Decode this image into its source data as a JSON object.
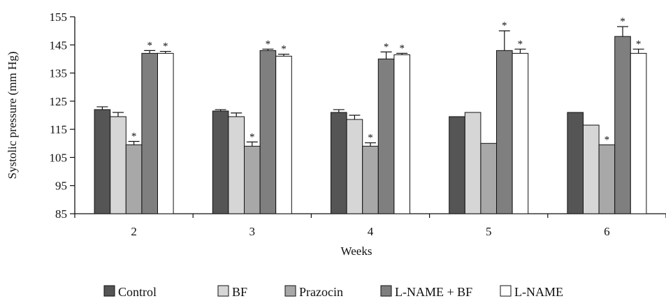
{
  "chart_data": {
    "type": "bar",
    "title": "",
    "xlabel": "Weeks",
    "ylabel": "Systolic pressure (mm Hg)",
    "ylim": [
      85,
      155
    ],
    "yticks": [
      85,
      95,
      105,
      115,
      125,
      135,
      145,
      155
    ],
    "categories": [
      "2",
      "3",
      "4",
      "5",
      "6"
    ],
    "series": [
      {
        "name": "Control",
        "color": "#555555",
        "values": [
          122,
          121.5,
          121,
          119.5,
          121
        ],
        "errors": [
          1,
          0.5,
          1,
          0,
          0
        ],
        "significant": [
          false,
          false,
          false,
          false,
          false
        ]
      },
      {
        "name": "BF",
        "color": "#d6d6d6",
        "values": [
          119.5,
          119.5,
          118.5,
          121,
          116.5
        ],
        "errors": [
          1.5,
          1.3,
          1.5,
          0,
          0
        ],
        "significant": [
          false,
          false,
          false,
          false,
          false
        ]
      },
      {
        "name": "Prazocin",
        "color": "#a8a8a8",
        "values": [
          109.5,
          109,
          109,
          110,
          109.5
        ],
        "errors": [
          1.2,
          1.5,
          1.2,
          0,
          0
        ],
        "significant": [
          true,
          true,
          true,
          false,
          true
        ]
      },
      {
        "name": "L-NAME + BF",
        "color": "#7f7f7f",
        "values": [
          142,
          143,
          140,
          143,
          148
        ],
        "errors": [
          1,
          0.5,
          2.5,
          7,
          3.5
        ],
        "significant": [
          true,
          true,
          true,
          true,
          true
        ]
      },
      {
        "name": "L-NAME",
        "color": "#ffffff",
        "values": [
          142,
          141,
          141.5,
          142,
          142
        ],
        "errors": [
          0.7,
          0.7,
          0.5,
          1.5,
          1.5
        ],
        "significant": [
          true,
          true,
          true,
          true,
          true
        ]
      }
    ],
    "significance_marker": "*",
    "grid": false,
    "legend_position": "bottom"
  }
}
